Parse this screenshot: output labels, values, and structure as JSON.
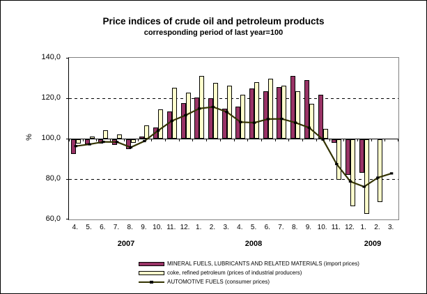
{
  "title": "Price indices of crude oil and petroleum products",
  "subtitle": "corresponding period of last year=100",
  "chart_data": {
    "type": "bar",
    "subtype": "combo bar + line, bars anchored at baseline 100",
    "baseline": 100,
    "ylabel": "%",
    "ylim": [
      60,
      140
    ],
    "ytick_values": [
      140,
      120,
      100,
      80,
      60
    ],
    "ytick_labels": [
      "140,0",
      "120,0",
      "100,0",
      "80,0",
      "60,0"
    ],
    "gridlines": {
      "dashed_at": [
        120,
        80
      ],
      "solid_at": [
        100
      ]
    },
    "categories": [
      "4.",
      "5.",
      "6.",
      "7.",
      "8.",
      "9.",
      "10.",
      "11.",
      "12.",
      "1.",
      "2.",
      "3.",
      "4.",
      "5.",
      "6.",
      "7.",
      "8.",
      "9.",
      "10.",
      "11.",
      "12.",
      "1.",
      "2.",
      "3."
    ],
    "year_groups": [
      {
        "label": "2007",
        "months_spanned": 9
      },
      {
        "label": "2008",
        "months_spanned": 12
      },
      {
        "label": "2009",
        "months_spanned": 3
      }
    ],
    "legend_position": "bottom",
    "series": [
      {
        "name": "MINERAL FUELS, LUBRICANTS AND RELATED MATERIALS (import prices)",
        "type": "bar",
        "color": "#993366",
        "values": [
          92.8,
          97.5,
          97.9,
          97.4,
          95.3,
          100.9,
          105.6,
          113.3,
          117.5,
          120.3,
          120.0,
          114.7,
          115.7,
          124.8,
          123.5,
          125.5,
          131.2,
          129.1,
          121.7,
          98.3,
          82.4,
          83.6,
          null,
          null
        ]
      },
      {
        "name": "coke, refined petroleum (prices of industrial producers)",
        "type": "bar",
        "color": "#FFFFCC",
        "values": [
          98.0,
          101.2,
          104.3,
          102.0,
          98.4,
          106.5,
          114.6,
          125.1,
          122.8,
          131.2,
          127.7,
          126.2,
          121.6,
          127.9,
          129.8,
          126.3,
          123.6,
          117.4,
          104.8,
          80.1,
          66.8,
          63.0,
          69.0,
          null
        ]
      },
      {
        "name": "AUTOMOTIVE FUELS (consumer prices)",
        "type": "line",
        "color": "#333300",
        "marker_color": "#000000",
        "values": [
          96.3,
          97.2,
          98.4,
          98.3,
          95.7,
          98.8,
          104.0,
          108.8,
          111.6,
          114.9,
          115.7,
          113.2,
          108.2,
          107.9,
          109.7,
          109.8,
          107.9,
          105.4,
          99.6,
          87.4,
          78.8,
          76.2,
          80.7,
          82.8
        ]
      }
    ]
  }
}
